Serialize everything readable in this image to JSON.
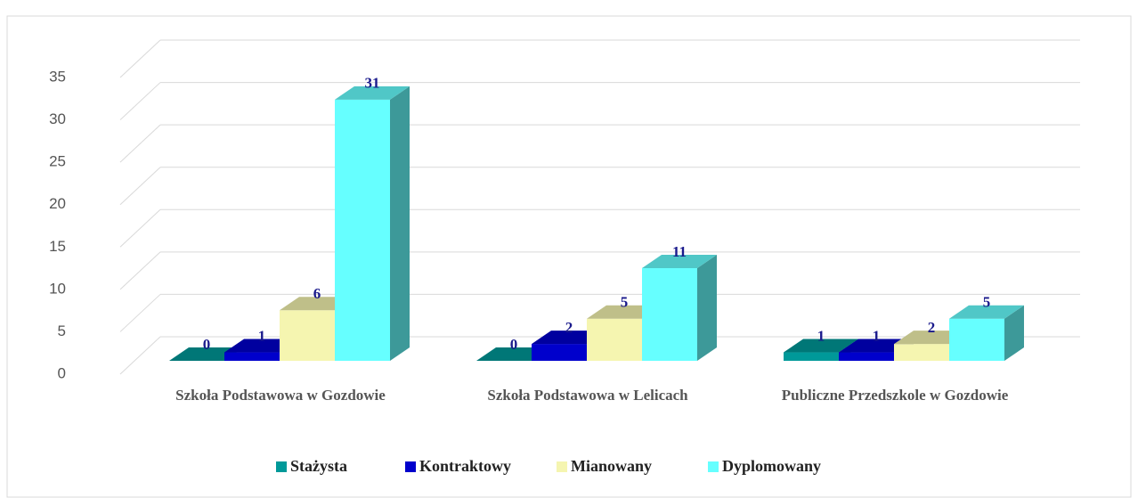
{
  "chart_data": {
    "type": "bar3d",
    "categories": [
      "Szkoła Podstawowa w Gozdowie",
      "Szkoła Podstawowa w Lelicach",
      "Publiczne Przedszkole w Gozdowie"
    ],
    "series": [
      {
        "name": "Stażysta",
        "color": "#009999",
        "values": [
          0,
          0,
          1
        ]
      },
      {
        "name": "Kontraktowy",
        "color": "#0000cc",
        "values": [
          1,
          2,
          1
        ]
      },
      {
        "name": "Mianowany",
        "color": "#f5f5b0",
        "values": [
          6,
          5,
          2
        ]
      },
      {
        "name": "Dyplomowany",
        "color": "#66ffff",
        "values": [
          31,
          11,
          5
        ]
      }
    ],
    "ylim": [
      0,
      35
    ],
    "yticks": [
      0,
      5,
      10,
      15,
      20,
      25,
      30,
      35
    ],
    "grid": true,
    "legend": "bottom"
  }
}
